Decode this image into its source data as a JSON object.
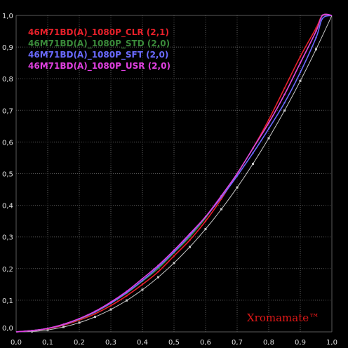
{
  "chart_data": {
    "type": "line",
    "title": "",
    "xlabel": "",
    "ylabel": "",
    "xlim": [
      0,
      1
    ],
    "ylim": [
      0,
      1
    ],
    "grid": true,
    "legend_position": "top-left",
    "x_ticks": [
      "0,0",
      "0,1",
      "0,2",
      "0,3",
      "0,4",
      "0,5",
      "0,6",
      "0,7",
      "0,8",
      "0,9",
      "1,0"
    ],
    "y_ticks": [
      "0,0",
      "0,1",
      "0,2",
      "0,3",
      "0,4",
      "0,5",
      "0,6",
      "0,7",
      "0,8",
      "0,9",
      "1,0"
    ],
    "watermark": "Xromamate™",
    "colors": {
      "background": "#000000",
      "grid": "#5a5a5a",
      "reference": "#c8c8c8"
    },
    "reference_gamma": 2.2,
    "series": [
      {
        "name": "46M71BD(A)_1080P_CLR (2,1)",
        "color": "#e8202a",
        "x": [
          0,
          0.05,
          0.1,
          0.15,
          0.2,
          0.25,
          0.3,
          0.35,
          0.4,
          0.45,
          0.5,
          0.55,
          0.6,
          0.65,
          0.7,
          0.75,
          0.8,
          0.85,
          0.9,
          0.95,
          0.97,
          1.0
        ],
        "y": [
          0,
          0.004,
          0.01,
          0.021,
          0.037,
          0.057,
          0.083,
          0.114,
          0.15,
          0.19,
          0.24,
          0.29,
          0.35,
          0.42,
          0.5,
          0.58,
          0.67,
          0.77,
          0.87,
          0.96,
          1.0,
          1.0
        ]
      },
      {
        "name": "46M71BD(A)_1080P_STD (2,0)",
        "color": "#3a8a3a",
        "x": [
          0,
          0.05,
          0.1,
          0.15,
          0.2,
          0.25,
          0.3,
          0.35,
          0.4,
          0.45,
          0.5,
          0.55,
          0.6,
          0.65,
          0.7,
          0.75,
          0.8,
          0.85,
          0.9,
          0.95,
          0.97,
          1.0
        ],
        "y": [
          0,
          0.004,
          0.011,
          0.023,
          0.04,
          0.062,
          0.09,
          0.122,
          0.16,
          0.2,
          0.25,
          0.3,
          0.36,
          0.43,
          0.5,
          0.58,
          0.66,
          0.75,
          0.85,
          0.95,
          1.0,
          1.0
        ]
      },
      {
        "name": "46M71BD(A)_1080P_SFT (2,0)",
        "color": "#6a6aff",
        "x": [
          0,
          0.05,
          0.1,
          0.15,
          0.2,
          0.25,
          0.3,
          0.35,
          0.4,
          0.45,
          0.5,
          0.55,
          0.6,
          0.65,
          0.7,
          0.75,
          0.8,
          0.85,
          0.9,
          0.95,
          0.97,
          1.0
        ],
        "y": [
          0,
          0.004,
          0.011,
          0.023,
          0.041,
          0.063,
          0.091,
          0.124,
          0.162,
          0.205,
          0.253,
          0.305,
          0.363,
          0.425,
          0.493,
          0.565,
          0.642,
          0.724,
          0.82,
          0.93,
          0.99,
          1.0
        ]
      },
      {
        "name": "46M71BD(A)_1080P_USR (2,0)",
        "color": "#e040e0",
        "x": [
          0,
          0.05,
          0.1,
          0.15,
          0.2,
          0.25,
          0.3,
          0.35,
          0.4,
          0.45,
          0.5,
          0.55,
          0.6,
          0.65,
          0.7,
          0.75,
          0.8,
          0.85,
          0.9,
          0.95,
          0.97,
          1.0
        ],
        "y": [
          0,
          0.004,
          0.011,
          0.024,
          0.042,
          0.065,
          0.094,
          0.128,
          0.168,
          0.21,
          0.258,
          0.31,
          0.364,
          0.43,
          0.5,
          0.58,
          0.66,
          0.75,
          0.85,
          0.95,
          1.0,
          1.0
        ]
      }
    ]
  }
}
